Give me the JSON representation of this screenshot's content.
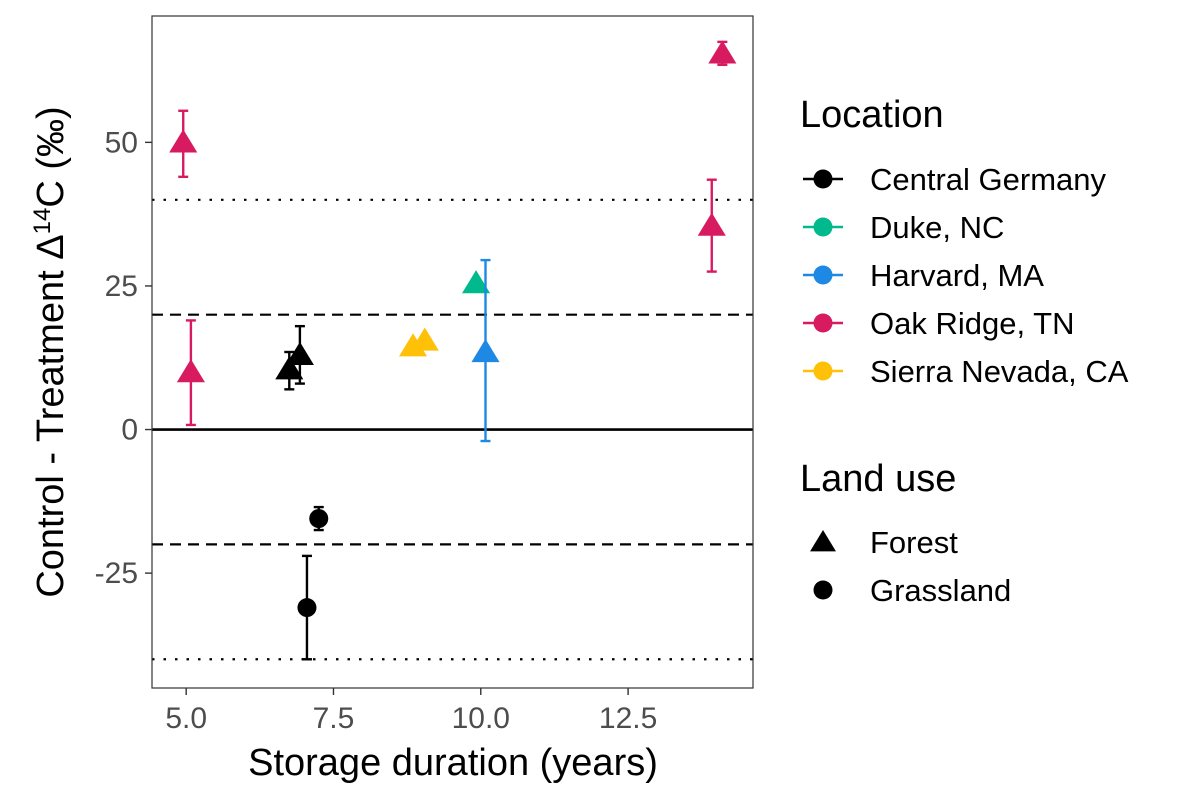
{
  "chart_data": {
    "type": "scatter",
    "title": "",
    "xlabel": "Storage duration (years)",
    "ylabel_main": "Control - Treatment Δ",
    "ylabel_sup": "14",
    "ylabel_tail": "C (‰)",
    "xlim": [
      4.42,
      14.62
    ],
    "ylim": [
      -45,
      72
    ],
    "x_ticks": [
      {
        "value": 5.0,
        "label": "5.0"
      },
      {
        "value": 7.5,
        "label": "7.5"
      },
      {
        "value": 10.0,
        "label": "10.0"
      },
      {
        "value": 12.5,
        "label": "12.5"
      }
    ],
    "y_ticks": [
      {
        "value": 50,
        "label": "50"
      },
      {
        "value": 25,
        "label": "25"
      },
      {
        "value": 0,
        "label": "0"
      },
      {
        "value": -25,
        "label": "-25"
      }
    ],
    "grid": false,
    "reference_lines": [
      {
        "y": 0,
        "style": "solid"
      },
      {
        "y": 20,
        "style": "dashed"
      },
      {
        "y": -20,
        "style": "dashed"
      },
      {
        "y": 40,
        "style": "dotted"
      },
      {
        "y": -40,
        "style": "dotted"
      }
    ],
    "points": [
      {
        "x": 4.95,
        "y": 50,
        "ymin": 44,
        "ymax": 55.5,
        "location": "Oak Ridge, TN",
        "land_use": "Forest"
      },
      {
        "x": 5.08,
        "y": 10,
        "ymin": 0.8,
        "ymax": 19,
        "location": "Oak Ridge, TN",
        "land_use": "Forest"
      },
      {
        "x": 6.75,
        "y": 10.5,
        "ymin": 7,
        "ymax": 13.5,
        "location": "Central Germany",
        "land_use": "Forest"
      },
      {
        "x": 6.93,
        "y": 13,
        "ymin": 8,
        "ymax": 18,
        "location": "Central Germany",
        "land_use": "Forest"
      },
      {
        "x": 7.25,
        "y": -15.5,
        "ymin": -17.5,
        "ymax": -13.5,
        "location": "Central Germany",
        "land_use": "Grassland"
      },
      {
        "x": 7.05,
        "y": -31,
        "ymin": -40,
        "ymax": -22,
        "location": "Central Germany",
        "land_use": "Grassland"
      },
      {
        "x": 8.85,
        "y": 14.5,
        "location": "Sierra Nevada, CA",
        "land_use": "Forest"
      },
      {
        "x": 9.05,
        "y": 15.5,
        "location": "Sierra Nevada, CA",
        "land_use": "Forest"
      },
      {
        "x": 9.92,
        "y": 25.5,
        "location": "Duke, NC",
        "land_use": "Forest"
      },
      {
        "x": 10.08,
        "y": 13.5,
        "ymin": -2,
        "ymax": 29.5,
        "location": "Harvard, MA",
        "land_use": "Forest"
      },
      {
        "x": 13.92,
        "y": 35.5,
        "ymin": 27.5,
        "ymax": 43.5,
        "location": "Oak Ridge, TN",
        "land_use": "Forest"
      },
      {
        "x": 14.1,
        "y": 65.5,
        "ymin": 63.5,
        "ymax": 67.5,
        "location": "Oak Ridge, TN",
        "land_use": "Forest"
      }
    ],
    "legend_placement": "right",
    "legend_location": {
      "title": "Location",
      "items": [
        {
          "label": "Central Germany",
          "color": "#000000"
        },
        {
          "label": "Duke, NC",
          "color": "#00BA8E"
        },
        {
          "label": "Harvard, MA",
          "color": "#1E88E5"
        },
        {
          "label": "Oak Ridge, TN",
          "color": "#D81B60"
        },
        {
          "label": "Sierra Nevada, CA",
          "color": "#FFC107"
        }
      ]
    },
    "legend_landuse": {
      "title": "Land use",
      "items": [
        {
          "label": "Forest",
          "shape": "triangle"
        },
        {
          "label": "Grassland",
          "shape": "circle"
        }
      ]
    }
  }
}
